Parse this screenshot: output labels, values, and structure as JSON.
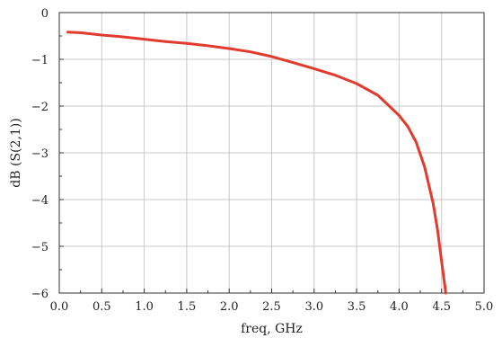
{
  "chart_data": {
    "type": "line",
    "title": "",
    "xlabel": "freq, GHz",
    "ylabel": "dB (S(2,1))",
    "xlim": [
      0,
      5
    ],
    "ylim": [
      -6,
      0
    ],
    "grid": true,
    "x_ticks": [
      "0.0",
      "0.5",
      "1.0",
      "1.5",
      "2.0",
      "2.5",
      "3.0",
      "3.5",
      "4.0",
      "4.5",
      "5.0"
    ],
    "y_ticks": [
      "0",
      "−1",
      "−2",
      "−3",
      "−4",
      "−5",
      "−6"
    ],
    "line_color": "#e23b2e",
    "series": [
      {
        "x": [
          0.1,
          0.25,
          0.5,
          0.75,
          1.0,
          1.25,
          1.5,
          1.75,
          2.0,
          2.25,
          2.5,
          2.75,
          3.0,
          3.25,
          3.5,
          3.75,
          4.0,
          4.1,
          4.2,
          4.3,
          4.4,
          4.45,
          4.5,
          4.55
        ],
        "y": [
          -0.42,
          -0.43,
          -0.48,
          -0.52,
          -0.57,
          -0.62,
          -0.66,
          -0.71,
          -0.77,
          -0.84,
          -0.94,
          -1.07,
          -1.2,
          -1.34,
          -1.52,
          -1.77,
          -2.2,
          -2.43,
          -2.77,
          -3.3,
          -4.07,
          -4.62,
          -5.32,
          -6.0
        ]
      }
    ]
  }
}
